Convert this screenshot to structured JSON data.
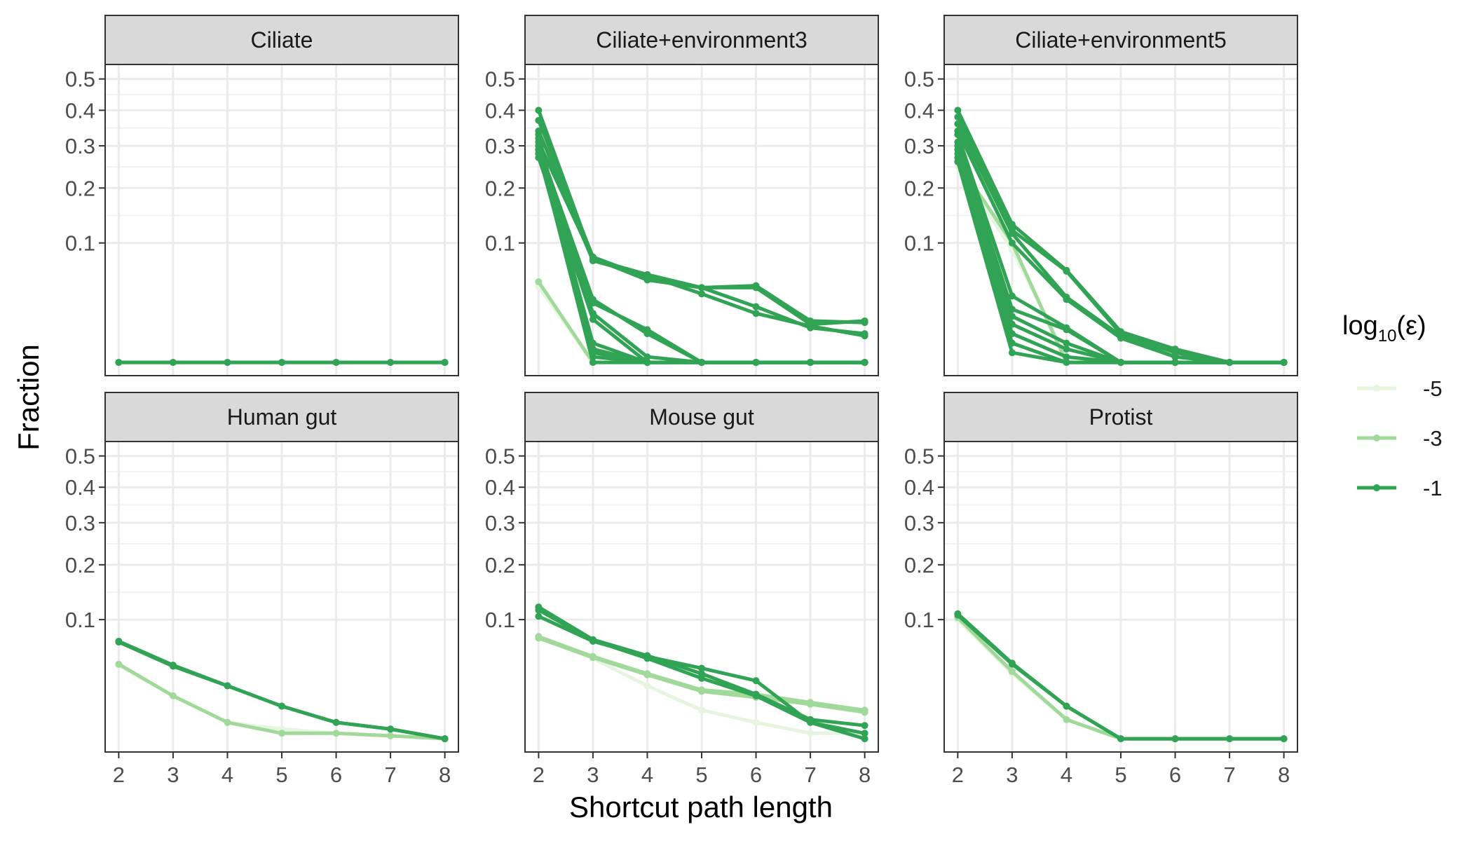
{
  "chart_data": {
    "type": "line",
    "xlabel": "Shortcut path length",
    "ylabel": "Fraction",
    "y_scale": "sqrt",
    "x_ticks": [
      2,
      3,
      4,
      5,
      6,
      7,
      8
    ],
    "y_ticks": [
      0.1,
      0.2,
      0.3,
      0.4,
      0.5
    ],
    "y_tick_labels": [
      "0.1",
      "0.2",
      "0.3",
      "0.4",
      "0.5"
    ],
    "xlim": [
      1.75,
      8.25
    ],
    "ylim": [
      0,
      0.55
    ],
    "grid": true,
    "legend": {
      "title_main": "log",
      "title_sub": "10",
      "title_rest": "(ε)",
      "placement": "right",
      "entries": [
        {
          "label": "-5",
          "color": "#e5f5e0"
        },
        {
          "label": "-3",
          "color": "#a1d99b"
        },
        {
          "label": "-1",
          "color": "#31a354"
        }
      ]
    },
    "colors": {
      "-5": "#e5f5e0",
      "-3": "#a1d99b",
      "-1": "#31a354"
    },
    "x": [
      2,
      3,
      4,
      5,
      6,
      7,
      8
    ],
    "panels": [
      {
        "title": "Ciliate",
        "series": [
          {
            "eps": "-1",
            "values": [
              0.001,
              0.001,
              0.001,
              0.001,
              0.001,
              0.001,
              0.001
            ]
          },
          {
            "eps": "-1",
            "values": [
              0.001,
              0.001,
              0.001,
              0.001,
              0.001,
              0.001,
              0.001
            ]
          }
        ]
      },
      {
        "title": "Ciliate+environment3",
        "series": [
          {
            "eps": "-5",
            "values": [
              0.045,
              0.001,
              0.001,
              0.001,
              0.001,
              0.001,
              0.001
            ]
          },
          {
            "eps": "-3",
            "values": [
              0.05,
              0.001,
              0.001,
              0.001,
              0.001,
              0.001,
              0.001
            ]
          },
          {
            "eps": "-1",
            "values": [
              0.4,
              0.077,
              0.058,
              0.044,
              0.044,
              0.015,
              0.017
            ]
          },
          {
            "eps": "-1",
            "values": [
              0.37,
              0.08,
              0.055,
              0.044,
              0.046,
              0.017,
              0.016
            ]
          },
          {
            "eps": "-1",
            "values": [
              0.34,
              0.075,
              0.057,
              0.038,
              0.022,
              0.014,
              0.009
            ]
          },
          {
            "eps": "-1",
            "values": [
              0.31,
              0.078,
              0.052,
              0.044,
              0.027,
              0.013,
              0.01
            ]
          },
          {
            "eps": "-1",
            "values": [
              0.3,
              0.033,
              0.01,
              0.001,
              0.001,
              0.001,
              0.001
            ]
          },
          {
            "eps": "-1",
            "values": [
              0.29,
              0.03,
              0.012,
              0.001,
              0.001,
              0.001,
              0.001
            ]
          },
          {
            "eps": "-1",
            "values": [
              0.28,
              0.022,
              0.002,
              0.001,
              0.001,
              0.001,
              0.001
            ]
          },
          {
            "eps": "-1",
            "values": [
              0.27,
              0.018,
              0.001,
              0.001,
              0.001,
              0.001,
              0.001
            ]
          },
          {
            "eps": "-1",
            "values": [
              0.3,
              0.006,
              0.001,
              0.001,
              0.001,
              0.001,
              0.001
            ]
          },
          {
            "eps": "-1",
            "values": [
              0.32,
              0.004,
              0.001,
              0.001,
              0.001,
              0.001,
              0.001
            ]
          },
          {
            "eps": "-1",
            "values": [
              0.28,
              0.003,
              0.001,
              0.001,
              0.001,
              0.001,
              0.001
            ]
          },
          {
            "eps": "-1",
            "values": [
              0.33,
              0.002,
              0.001,
              0.001,
              0.001,
              0.001,
              0.001
            ]
          },
          {
            "eps": "-1",
            "values": [
              0.29,
              0.001,
              0.001,
              0.001,
              0.001,
              0.001,
              0.001
            ]
          }
        ]
      },
      {
        "title": "Ciliate+environment5",
        "series": [
          {
            "eps": "-5",
            "values": [
              0.25,
              0.09,
              0.002,
              0.001,
              0.001,
              0.001,
              0.001
            ]
          },
          {
            "eps": "-3",
            "values": [
              0.26,
              0.1,
              0.001,
              0.001,
              0.001,
              0.001,
              0.001
            ]
          },
          {
            "eps": "-1",
            "values": [
              0.4,
              0.13,
              0.063,
              0.011,
              0.004,
              0.001,
              0.001
            ]
          },
          {
            "eps": "-1",
            "values": [
              0.38,
              0.12,
              0.062,
              0.01,
              0.003,
              0.001,
              0.001
            ]
          },
          {
            "eps": "-1",
            "values": [
              0.36,
              0.115,
              0.035,
              0.009,
              0.002,
              0.001,
              0.001
            ]
          },
          {
            "eps": "-1",
            "values": [
              0.34,
              0.1,
              0.033,
              0.008,
              0.002,
              0.001,
              0.001
            ]
          },
          {
            "eps": "-1",
            "values": [
              0.33,
              0.036,
              0.013,
              0.001,
              0.001,
              0.001,
              0.001
            ]
          },
          {
            "eps": "-1",
            "values": [
              0.31,
              0.025,
              0.012,
              0.001,
              0.001,
              0.001,
              0.001
            ]
          },
          {
            "eps": "-1",
            "values": [
              0.3,
              0.02,
              0.006,
              0.001,
              0.001,
              0.001,
              0.001
            ]
          },
          {
            "eps": "-1",
            "values": [
              0.29,
              0.015,
              0.004,
              0.001,
              0.001,
              0.001,
              0.001
            ]
          },
          {
            "eps": "-1",
            "values": [
              0.28,
              0.01,
              0.002,
              0.001,
              0.001,
              0.001,
              0.001
            ]
          },
          {
            "eps": "-1",
            "values": [
              0.27,
              0.006,
              0.001,
              0.001,
              0.001,
              0.001,
              0.001
            ]
          },
          {
            "eps": "-1",
            "values": [
              0.26,
              0.003,
              0.001,
              0.001,
              0.001,
              0.001,
              0.001
            ]
          }
        ]
      },
      {
        "title": "Human gut",
        "series": [
          {
            "eps": "-5",
            "values": [
              0.043,
              0.018,
              0.005,
              0.003,
              0.002,
              0.0015,
              0.001
            ]
          },
          {
            "eps": "-3",
            "values": [
              0.044,
              0.018,
              0.005,
              0.002,
              0.002,
              0.0015,
              0.001
            ]
          },
          {
            "eps": "-1",
            "values": [
              0.07,
              0.043,
              0.025,
              0.012,
              0.005,
              0.003,
              0.001
            ]
          },
          {
            "eps": "-1",
            "values": [
              0.069,
              0.042,
              0.025,
              0.012,
              0.005,
              0.003,
              0.001
            ]
          }
        ]
      },
      {
        "title": "Mouse gut",
        "series": [
          {
            "eps": "-5",
            "values": [
              0.075,
              0.05,
              0.025,
              0.01,
              0.005,
              0.002,
              0.002
            ]
          },
          {
            "eps": "-3",
            "values": [
              0.076,
              0.052,
              0.035,
              0.022,
              0.019,
              0.014,
              0.01
            ]
          },
          {
            "eps": "-3",
            "values": [
              0.074,
              0.051,
              0.034,
              0.021,
              0.017,
              0.013,
              0.009
            ]
          },
          {
            "eps": "-1",
            "values": [
              0.12,
              0.072,
              0.053,
              0.035,
              0.019,
              0.006,
              0.004
            ]
          },
          {
            "eps": "-1",
            "values": [
              0.115,
              0.071,
              0.05,
              0.031,
              0.018,
              0.005,
              0.002
            ]
          },
          {
            "eps": "-1",
            "values": [
              0.105,
              0.07,
              0.052,
              0.04,
              0.029,
              0.005,
              0.001
            ]
          }
        ]
      },
      {
        "title": "Protist",
        "series": [
          {
            "eps": "-5",
            "values": [
              0.1,
              0.035,
              0.006,
              0.001,
              0.001,
              0.001,
              0.001
            ]
          },
          {
            "eps": "-3",
            "values": [
              0.103,
              0.037,
              0.006,
              0.001,
              0.001,
              0.001,
              0.001
            ]
          },
          {
            "eps": "-1",
            "values": [
              0.109,
              0.045,
              0.012,
              0.001,
              0.001,
              0.001,
              0.001
            ]
          },
          {
            "eps": "-1",
            "values": [
              0.107,
              0.044,
              0.012,
              0.001,
              0.001,
              0.001,
              0.001
            ]
          }
        ]
      }
    ]
  }
}
